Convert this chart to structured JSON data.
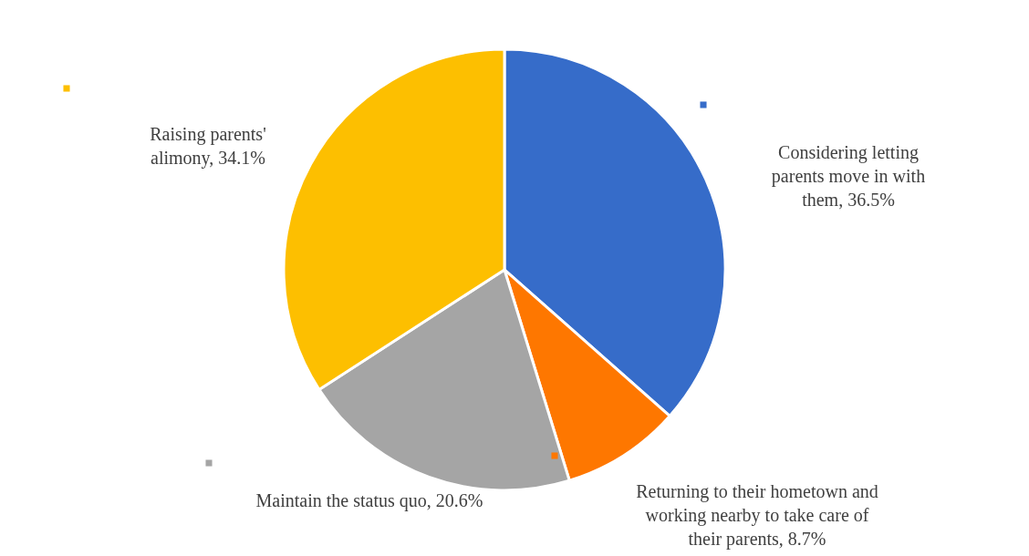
{
  "chart_data": {
    "type": "pie",
    "categories": [
      "Considering letting parents move in with them",
      "Returning to their hometown and working nearby to take care of their parents",
      "Maintain the status quo",
      "Raising parents' alimony"
    ],
    "values": [
      36.5,
      8.7,
      20.6,
      34.1
    ],
    "value_labels": [
      "36.5%",
      "8.7%",
      "20.6%",
      "34.1%"
    ],
    "colors": [
      "#366cc9",
      "#fe7700",
      "#a5a5a5",
      "#fdbf00"
    ]
  }
}
